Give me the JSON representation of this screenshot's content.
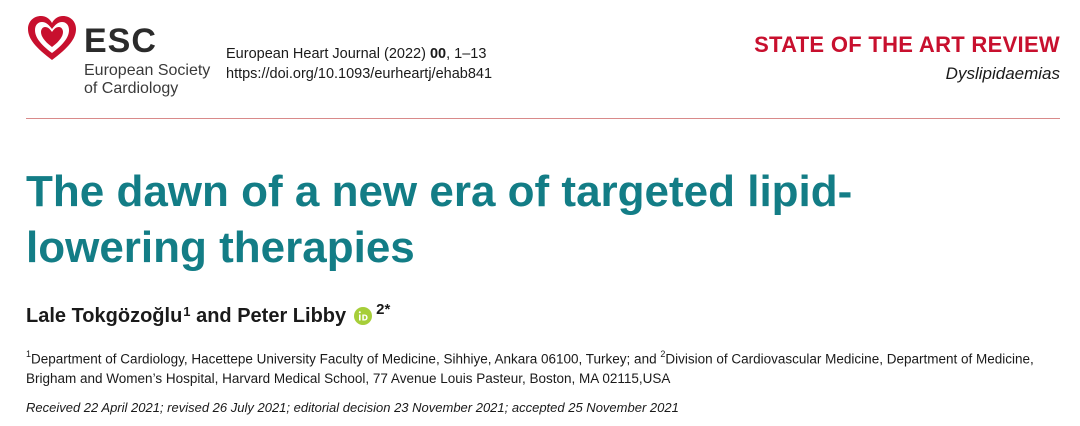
{
  "header": {
    "logo": {
      "icon": "esc-heart-logo-icon",
      "abbr": "ESC",
      "name_line1": "European Society",
      "name_line2": "of Cardiology",
      "color": "#c8102e"
    },
    "journal": {
      "name": "European Heart Journal (2022)",
      "volume": "00",
      "pages": ", 1–13",
      "doi": "https://doi.org/10.1093/eurheartj/ehab841"
    },
    "article_type": {
      "label": "STATE OF THE ART REVIEW",
      "subject": "Dyslipidaemias",
      "color": "#c8102e"
    }
  },
  "article": {
    "title_line1": "The dawn of a new era of targeted lipid-",
    "title_line2": "lowering therapies",
    "title_color": "#137d86",
    "authors": {
      "author1": "Lale Tokgözoğlu",
      "author1_sup": "1",
      "connector": " and ",
      "author2": "Peter Libby",
      "author2_sup": "2*",
      "orcid_icon": "orcid-icon",
      "orcid_color": "#a6ce39"
    },
    "affiliations": {
      "sup1": "1",
      "text1": "Department of Cardiology, Hacettepe University Faculty of Medicine, Sihhiye, Ankara 06100, Turkey; and ",
      "sup2": "2",
      "text2": "Division of Cardiovascular Medicine, Department of Medicine,",
      "text3": "Brigham and Women’s Hospital, Harvard Medical School, 77 Avenue Louis Pasteur, Boston, MA 02115,USA"
    },
    "dates": "Received 22 April 2021; revised 26 July 2021; editorial decision 23 November 2021; accepted 25 November 2021"
  }
}
